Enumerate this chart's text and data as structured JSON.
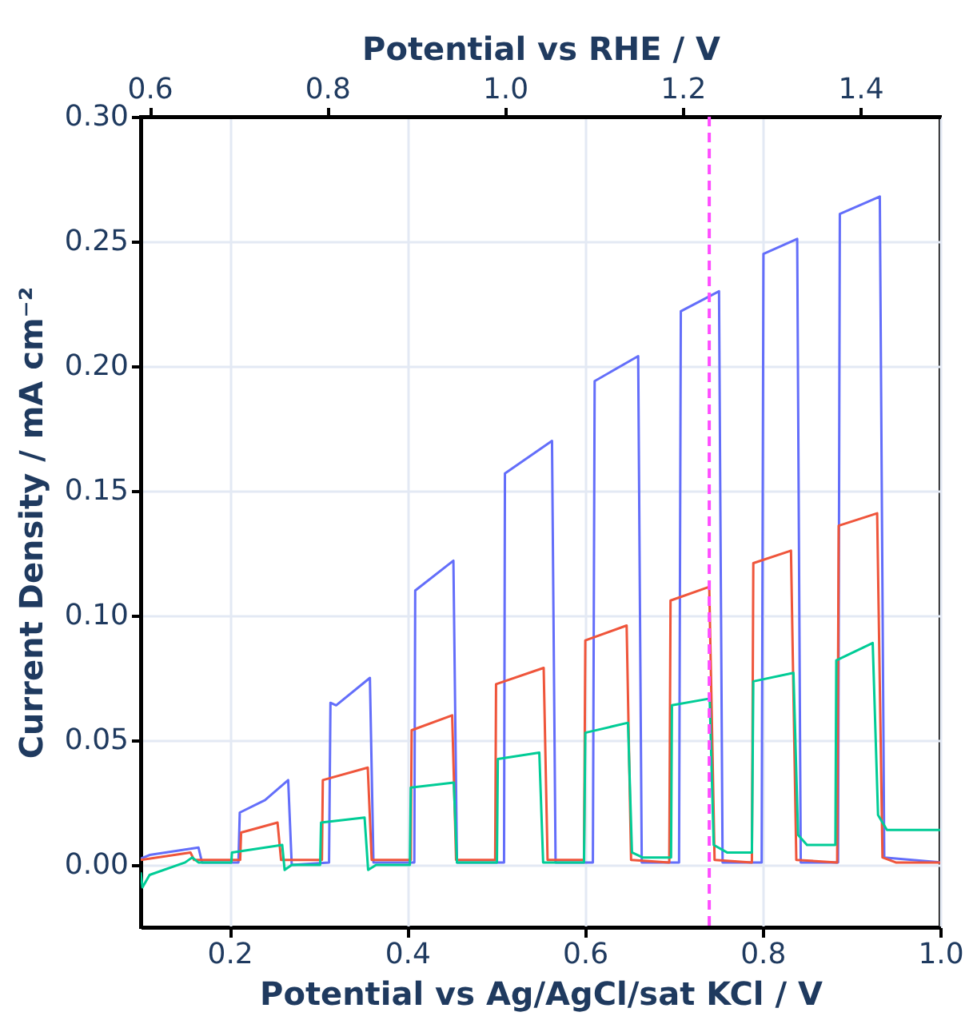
{
  "chart_data": {
    "type": "line",
    "xlabel": "Potential vs Ag/AgCl/sat KCl / V",
    "x2label": "Potential vs RHE / V",
    "ylabel": "Current Density / mA cm⁻²",
    "xlim": [
      0.1,
      1.0
    ],
    "xticks": [
      0.2,
      0.4,
      0.6,
      0.8,
      {
        "value": 1,
        "label": "1.0"
      }
    ],
    "x2lim": [
      0.59,
      1.49
    ],
    "x2ticks": [
      0.6,
      0.8,
      {
        "value": 1,
        "label": "1.0"
      },
      1.2,
      1.4
    ],
    "ylim": [
      -0.025,
      0.3
    ],
    "yticks": [
      {
        "value": 0,
        "label": "0.00"
      },
      0.05,
      {
        "value": 0.1,
        "label": "0.10"
      },
      0.15,
      {
        "value": 0.2,
        "label": "0.20"
      },
      0.25,
      {
        "value": 0.3,
        "label": "0.30"
      }
    ],
    "grid": true,
    "line_style": "solid",
    "ref_lines": [
      {
        "axis": "x2",
        "value": 1.23,
        "color": "#ff4dff",
        "line_style": "dashed"
      }
    ],
    "series": [
      {
        "color": "#636efa",
        "x": [
          0.1,
          0.11,
          0.165,
          0.169,
          0.21,
          0.2115,
          0.24,
          0.266,
          0.27,
          0.312,
          0.3136,
          0.32,
          0.358,
          0.362,
          0.408,
          0.409,
          0.452,
          0.456,
          0.509,
          0.51,
          0.563,
          0.567,
          0.609,
          0.611,
          0.66,
          0.664,
          0.706,
          0.708,
          0.751,
          0.755,
          0.799,
          0.801,
          0.839,
          0.843,
          0.885,
          0.887,
          0.932,
          0.937,
          1.0
        ],
        "values": [
          0.0025,
          0.004,
          0.007,
          0.001,
          0.001,
          0.021,
          0.026,
          0.034,
          0.0,
          0.001,
          0.065,
          0.064,
          0.075,
          0.001,
          0.001,
          0.11,
          0.122,
          0.001,
          0.001,
          0.157,
          0.17,
          0.001,
          0.001,
          0.194,
          0.204,
          0.001,
          0.001,
          0.222,
          0.23,
          0.001,
          0.001,
          0.245,
          0.251,
          0.001,
          0.001,
          0.261,
          0.268,
          0.003,
          0.001
        ]
      },
      {
        "color": "#ef553b",
        "x": [
          0.1,
          0.156,
          0.16,
          0.212,
          0.213,
          0.254,
          0.258,
          0.304,
          0.305,
          0.3556,
          0.36,
          0.404,
          0.405,
          0.4506,
          0.455,
          0.499,
          0.5,
          0.5536,
          0.558,
          0.599,
          0.6005,
          0.647,
          0.652,
          0.695,
          0.6964,
          0.74,
          0.746,
          0.788,
          0.7896,
          0.832,
          0.838,
          0.884,
          0.8857,
          0.929,
          0.935,
          0.95,
          1.0
        ],
        "values": [
          0.002,
          0.005,
          0.002,
          0.002,
          0.013,
          0.017,
          0.002,
          0.002,
          0.034,
          0.039,
          0.002,
          0.002,
          0.054,
          0.06,
          0.002,
          0.002,
          0.0725,
          0.079,
          0.002,
          0.002,
          0.09,
          0.096,
          0.002,
          0.001,
          0.106,
          0.1115,
          0.002,
          0.001,
          0.121,
          0.126,
          0.002,
          0.001,
          0.136,
          0.141,
          0.003,
          0.001,
          0.001
        ]
      },
      {
        "color": "#00cc96",
        "x": [
          0.1,
          0.102,
          0.11,
          0.15,
          0.158,
          0.165,
          0.202,
          0.2027,
          0.2593,
          0.262,
          0.27,
          0.302,
          0.303,
          0.352,
          0.356,
          0.365,
          0.403,
          0.404,
          0.4524,
          0.456,
          0.501,
          0.502,
          0.5487,
          0.553,
          0.599,
          0.6005,
          0.6485,
          0.653,
          0.665,
          0.697,
          0.698,
          0.7405,
          0.745,
          0.76,
          0.788,
          0.7896,
          0.8348,
          0.84,
          0.85,
          0.882,
          0.883,
          0.924,
          0.93,
          0.94,
          1.0
        ],
        "values": [
          -0.003,
          -0.009,
          -0.004,
          0.001,
          0.003,
          0.001,
          0.001,
          0.005,
          0.008,
          -0.002,
          0.0,
          0.0,
          0.017,
          0.019,
          -0.002,
          0.0,
          0.0,
          0.031,
          0.033,
          0.001,
          0.001,
          0.0425,
          0.045,
          0.001,
          0.001,
          0.053,
          0.057,
          0.005,
          0.003,
          0.003,
          0.064,
          0.0667,
          0.008,
          0.005,
          0.005,
          0.0736,
          0.077,
          0.012,
          0.008,
          0.008,
          0.082,
          0.089,
          0.02,
          0.014,
          0.014
        ]
      }
    ]
  }
}
